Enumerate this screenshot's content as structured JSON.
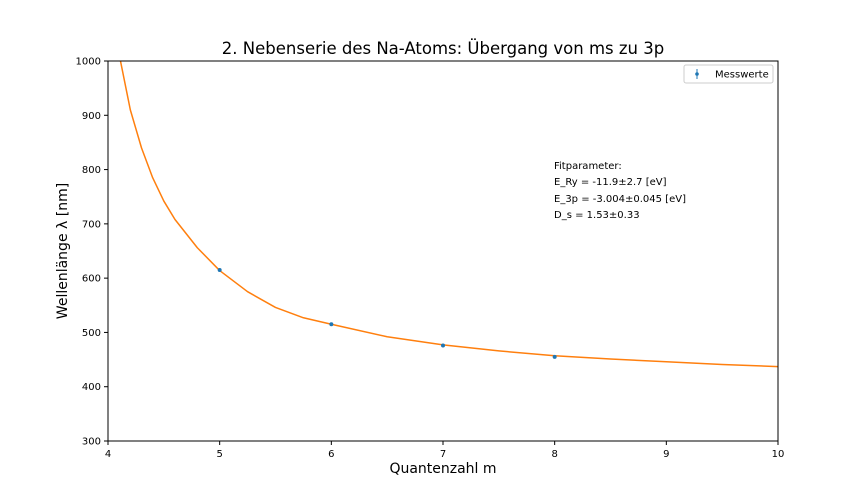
{
  "chart_data": {
    "type": "scatter",
    "title": "2. Nebenserie des Na-Atoms: Übergang von ms zu 3p",
    "xlabel": "Quantenzahl m",
    "ylabel": "Wellenlänge λ [nm]",
    "xlim": [
      4,
      10
    ],
    "ylim": [
      300,
      1000
    ],
    "xticks": [
      "4",
      "5",
      "6",
      "7",
      "8",
      "9",
      "10"
    ],
    "yticks": [
      "300",
      "400",
      "500",
      "600",
      "700",
      "800",
      "900",
      "1000"
    ],
    "grid": false,
    "legend": {
      "placement": "top-right",
      "entries": [
        "Messwerte"
      ]
    },
    "series": [
      {
        "name": "Messwerte",
        "kind": "errorbar-points",
        "color": "#1f77b4",
        "x": [
          5,
          6,
          7,
          8
        ],
        "y": [
          615,
          515,
          476,
          455
        ]
      },
      {
        "kind": "fit-curve",
        "color": "#ff7f0e",
        "x": [
          4.1,
          4.2,
          4.3,
          4.4,
          4.5,
          4.6,
          4.8,
          5.0,
          5.25,
          5.5,
          5.75,
          6.0,
          6.5,
          7.0,
          7.5,
          8.0,
          8.5,
          9.0,
          9.5,
          10.0
        ],
        "y": [
          1012,
          910,
          840,
          785,
          742,
          708,
          656,
          614,
          575,
          546,
          527,
          515,
          492,
          477,
          466,
          457,
          451,
          446,
          441,
          437
        ]
      }
    ],
    "annotation": {
      "lines": [
        "Fitparameter:",
        "E_Ry = -11.9±2.7 [eV]",
        "E_3p = -3.004±0.045 [eV]",
        "D_s = 1.53±0.33"
      ]
    }
  }
}
